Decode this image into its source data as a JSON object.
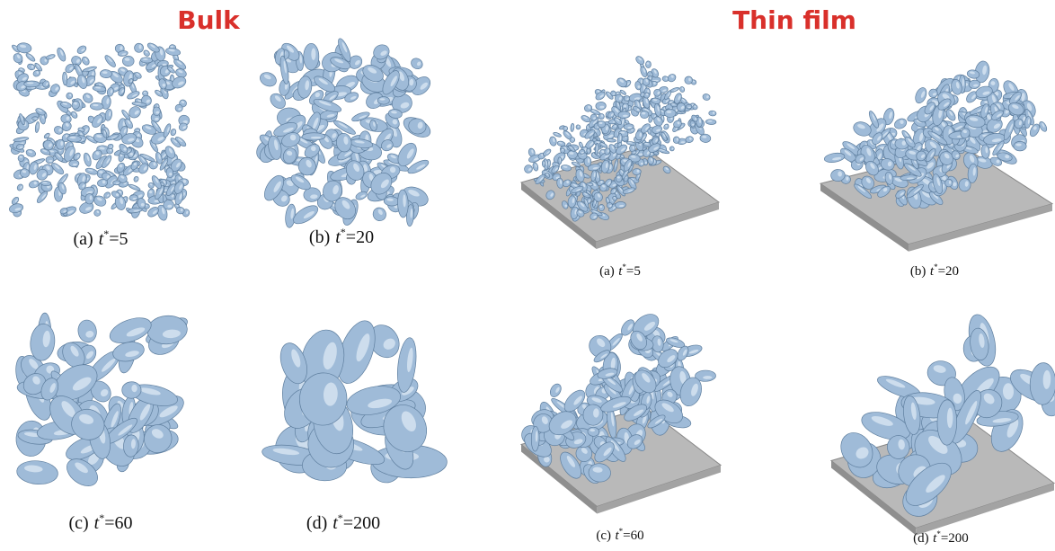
{
  "panels": [
    {
      "title": "Bulk",
      "figures": [
        {
          "label": "(a)",
          "variable": "t",
          "superscript": "*",
          "value": "=5"
        },
        {
          "label": "(b)",
          "variable": "t",
          "superscript": "*",
          "value": "=20"
        },
        {
          "label": "(c)",
          "variable": "t",
          "superscript": "*",
          "value": "=60"
        },
        {
          "label": "(d)",
          "variable": "t",
          "superscript": "*",
          "value": "=200"
        }
      ]
    },
    {
      "title": "Thin film",
      "figures": [
        {
          "label": "(a)",
          "variable": "t",
          "superscript": "*",
          "value": "=5"
        },
        {
          "label": "(b)",
          "variable": "t",
          "superscript": "*",
          "value": "=20"
        },
        {
          "label": "(c)",
          "variable": "t",
          "superscript": "*",
          "value": "=60"
        },
        {
          "label": "(d)",
          "variable": "t",
          "superscript": "*",
          "value": "=200"
        }
      ]
    }
  ]
}
